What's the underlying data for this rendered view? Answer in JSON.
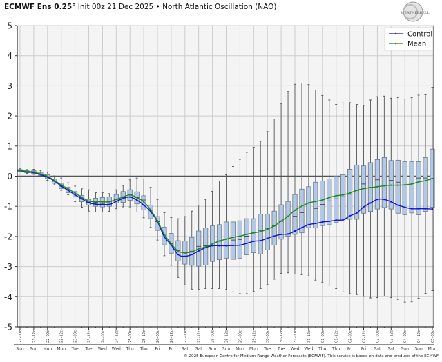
{
  "title": {
    "bold": "ECMWF Ens 0.25°",
    "rest": " Init 00z 21 Dec 2025 • North Atlantic Oscillation (NAO)"
  },
  "logo_text": "WEATHERBELL",
  "copyright": "© 2025 European Centre for Medium-Range Weather Forecasts (ECMWF). This service is based on data and products of the ECMWF.",
  "chart_data": {
    "type": "box",
    "title": "ECMWF Ens 0.25° Init 00z 21 Dec 2025 • North Atlantic Oscillation (NAO)",
    "ylim": [
      -5,
      5
    ],
    "yticks": [
      "5",
      "4",
      "3",
      "2",
      "1",
      "0",
      "-1",
      "-2",
      "-3",
      "-4",
      "-5"
    ],
    "grid": true,
    "legend_position": "top-right",
    "time_step": "6-hourly",
    "xtick_labels": [
      "21-00z",
      "21-12z",
      "22-00z",
      "22-12z",
      "23-00z",
      "23-12z",
      "24-00z",
      "24-12z",
      "25-00z",
      "25-12z",
      "26-00z",
      "26-12z",
      "27-00z",
      "27-12z",
      "28-00z",
      "28-12z",
      "29-00z",
      "29-12z",
      "30-00z",
      "30-12z",
      "31-00z",
      "31-12z",
      "01-00z",
      "01-12z",
      "02-00z",
      "02-12z",
      "03-00z",
      "03-12z",
      "04-00z",
      "04-12z",
      "05-00z"
    ],
    "day_labels": [
      "Sun",
      "Sun",
      "Mon",
      "Mon",
      "Tue",
      "Tue",
      "Wed",
      "Wed",
      "Thu",
      "Thu",
      "Fri",
      "Fri",
      "Sat",
      "Sat",
      "Sun",
      "Sun",
      "Mon",
      "Mon",
      "Tue",
      "Tue",
      "Wed",
      "Wed",
      "Thu",
      "Thu",
      "Fri",
      "Fri",
      "Sat",
      "Sat",
      "Sun",
      "Sun",
      "Mon"
    ],
    "box": {
      "max": [
        0.26,
        0.22,
        0.23,
        0.19,
        0.14,
        0.01,
        -0.06,
        -0.22,
        -0.33,
        -0.42,
        -0.45,
        -0.55,
        -0.55,
        -0.58,
        -0.45,
        -0.31,
        -0.12,
        -0.06,
        -0.09,
        -0.37,
        -0.77,
        -1.21,
        -1.37,
        -1.41,
        -1.34,
        -1.16,
        -0.96,
        -0.77,
        -0.5,
        -0.16,
        0.05,
        0.32,
        0.56,
        0.79,
        0.96,
        1.16,
        1.48,
        1.9,
        2.41,
        2.81,
        3.05,
        3.09,
        3.04,
        2.86,
        2.68,
        2.53,
        2.38,
        2.43,
        2.44,
        2.38,
        2.35,
        2.53,
        2.64,
        2.66,
        2.59,
        2.61,
        2.56,
        2.61,
        2.69,
        2.7,
        2.95
      ],
      "q3": [
        0.22,
        0.18,
        0.18,
        0.11,
        0.05,
        -0.09,
        -0.26,
        -0.37,
        -0.51,
        -0.64,
        -0.77,
        -0.73,
        -0.71,
        -0.69,
        -0.61,
        -0.51,
        -0.45,
        -0.52,
        -0.65,
        -0.96,
        -1.34,
        -1.69,
        -1.9,
        -2.14,
        -2.15,
        -2.03,
        -1.82,
        -1.72,
        -1.65,
        -1.61,
        -1.52,
        -1.52,
        -1.48,
        -1.41,
        -1.41,
        -1.26,
        -1.26,
        -1.16,
        -0.95,
        -0.84,
        -0.61,
        -0.43,
        -0.35,
        -0.2,
        -0.16,
        -0.09,
        0.0,
        0.05,
        0.23,
        0.37,
        0.34,
        0.45,
        0.55,
        0.62,
        0.52,
        0.53,
        0.48,
        0.48,
        0.48,
        0.62,
        0.9
      ],
      "median": [
        0.19,
        0.14,
        0.13,
        0.06,
        -0.02,
        -0.17,
        -0.33,
        -0.45,
        -0.6,
        -0.75,
        -0.87,
        -0.88,
        -0.9,
        -0.85,
        -0.77,
        -0.71,
        -0.62,
        -0.71,
        -0.79,
        -1.13,
        -1.51,
        -1.93,
        -2.24,
        -2.47,
        -2.58,
        -2.49,
        -2.33,
        -2.31,
        -2.22,
        -2.16,
        -2.15,
        -2.12,
        -2.1,
        -1.99,
        -1.86,
        -1.8,
        -1.73,
        -1.65,
        -1.5,
        -1.42,
        -1.33,
        -1.21,
        -1.12,
        -1.07,
        -0.94,
        -0.82,
        -0.75,
        -0.68,
        -0.6,
        -0.47,
        -0.26,
        -0.16,
        -0.12,
        -0.16,
        -0.14,
        -0.2,
        -0.23,
        -0.16,
        -0.06,
        -0.06,
        -0.08
      ],
      "q1": [
        0.16,
        0.11,
        0.09,
        0.02,
        -0.08,
        -0.24,
        -0.41,
        -0.55,
        -0.69,
        -0.85,
        -0.96,
        -1.0,
        -1.02,
        -1.0,
        -0.89,
        -0.87,
        -0.8,
        -0.92,
        -1.12,
        -1.41,
        -1.8,
        -2.28,
        -2.56,
        -2.81,
        -2.92,
        -2.96,
        -2.99,
        -2.95,
        -2.83,
        -2.77,
        -2.72,
        -2.76,
        -2.73,
        -2.61,
        -2.54,
        -2.58,
        -2.45,
        -2.29,
        -2.09,
        -1.99,
        -1.93,
        -1.88,
        -1.71,
        -1.72,
        -1.64,
        -1.61,
        -1.53,
        -1.45,
        -1.43,
        -1.43,
        -1.23,
        -1.17,
        -1.09,
        -1.04,
        -1.09,
        -1.23,
        -1.28,
        -1.22,
        -1.28,
        -1.17,
        -1.03
      ],
      "min": [
        0.14,
        0.09,
        0.06,
        -0.01,
        -0.14,
        -0.29,
        -0.47,
        -0.62,
        -0.85,
        -1.03,
        -1.16,
        -1.19,
        -1.19,
        -1.17,
        -1.08,
        -1.02,
        -1.02,
        -1.19,
        -1.38,
        -1.7,
        -2.12,
        -2.64,
        -2.96,
        -3.36,
        -3.61,
        -3.75,
        -3.76,
        -3.73,
        -3.73,
        -3.73,
        -3.76,
        -3.84,
        -3.9,
        -3.9,
        -3.83,
        -3.73,
        -3.6,
        -3.42,
        -3.23,
        -3.21,
        -3.25,
        -3.27,
        -3.31,
        -3.45,
        -3.52,
        -3.62,
        -3.73,
        -3.84,
        -3.9,
        -3.93,
        -3.99,
        -4.04,
        -4.03,
        -3.98,
        -4.03,
        -4.09,
        -4.18,
        -4.17,
        -4.05,
        -3.89,
        -3.8
      ]
    },
    "series": [
      {
        "name": "Control",
        "color": "#1010e0",
        "values": [
          0.19,
          0.14,
          0.12,
          0.05,
          -0.03,
          -0.16,
          -0.33,
          -0.47,
          -0.62,
          -0.75,
          -0.88,
          -0.93,
          -0.94,
          -0.94,
          -0.84,
          -0.74,
          -0.69,
          -0.79,
          -0.96,
          -1.17,
          -1.51,
          -2.01,
          -2.28,
          -2.6,
          -2.66,
          -2.6,
          -2.48,
          -2.37,
          -2.31,
          -2.31,
          -2.31,
          -2.3,
          -2.29,
          -2.23,
          -2.16,
          -2.14,
          -2.06,
          -1.99,
          -1.93,
          -1.92,
          -1.82,
          -1.71,
          -1.61,
          -1.57,
          -1.52,
          -1.5,
          -1.46,
          -1.45,
          -1.32,
          -1.22,
          -1.02,
          -0.89,
          -0.77,
          -0.77,
          -0.85,
          -0.96,
          -1.03,
          -1.08,
          -1.08,
          -1.08,
          -1.09
        ]
      },
      {
        "name": "Mean",
        "color": "#1a8a1a",
        "values": [
          0.2,
          0.16,
          0.14,
          0.07,
          0.0,
          -0.14,
          -0.29,
          -0.42,
          -0.56,
          -0.7,
          -0.83,
          -0.85,
          -0.85,
          -0.85,
          -0.77,
          -0.69,
          -0.62,
          -0.71,
          -0.85,
          -1.12,
          -1.48,
          -1.93,
          -2.24,
          -2.49,
          -2.54,
          -2.51,
          -2.41,
          -2.35,
          -2.25,
          -2.15,
          -2.09,
          -2.03,
          -1.99,
          -1.93,
          -1.88,
          -1.84,
          -1.76,
          -1.65,
          -1.49,
          -1.33,
          -1.13,
          -1.0,
          -0.89,
          -0.84,
          -0.79,
          -0.71,
          -0.65,
          -0.62,
          -0.56,
          -0.47,
          -0.41,
          -0.38,
          -0.35,
          -0.32,
          -0.3,
          -0.3,
          -0.29,
          -0.26,
          -0.19,
          -0.15,
          -0.08
        ]
      }
    ],
    "colors": {
      "box_fill": "#b4c8e4",
      "box_stroke": "#6a7a8a",
      "whisker": "#555555",
      "plot_bg": "#f4f4f4",
      "grid": "#cccccc",
      "zero_line": "#555555"
    }
  }
}
